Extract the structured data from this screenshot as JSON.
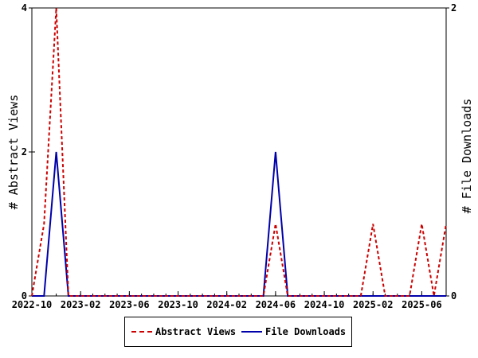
{
  "chart_data": {
    "type": "line",
    "x_type": "date",
    "x": [
      "2022-10-01",
      "2022-11-01",
      "2022-12-01",
      "2023-01-01",
      "2023-02-01",
      "2023-03-01",
      "2023-04-01",
      "2023-05-01",
      "2023-06-01",
      "2023-07-01",
      "2023-08-01",
      "2023-09-01",
      "2023-10-01",
      "2023-11-01",
      "2023-12-01",
      "2024-01-01",
      "2024-02-01",
      "2024-03-01",
      "2024-04-01",
      "2024-05-01",
      "2024-06-01",
      "2024-07-01",
      "2024-08-01",
      "2024-09-01",
      "2024-10-01",
      "2024-11-01",
      "2024-12-01",
      "2025-01-01",
      "2025-02-01",
      "2025-03-01",
      "2025-04-01",
      "2025-05-01",
      "2025-06-01",
      "2025-07-01",
      "2025-08-01"
    ],
    "series": [
      {
        "name": "Abstract Views",
        "axis": "left",
        "color": "#cc0000",
        "style": "dashed",
        "values": [
          0,
          1,
          4,
          0,
          0,
          0,
          0,
          0,
          0,
          0,
          0,
          0,
          0,
          0,
          0,
          0,
          0,
          0,
          0,
          0,
          1,
          0,
          0,
          0,
          0,
          0,
          0,
          0,
          1,
          0,
          0,
          0,
          1,
          0,
          1
        ]
      },
      {
        "name": "File Downloads",
        "axis": "right",
        "color": "#0000aa",
        "style": "solid",
        "values": [
          0,
          0,
          1,
          0,
          0,
          0,
          0,
          0,
          0,
          0,
          0,
          0,
          0,
          0,
          0,
          0,
          0,
          0,
          0,
          0,
          1,
          0,
          0,
          0,
          0,
          0,
          0,
          0,
          0,
          0,
          0,
          0,
          0,
          0,
          0
        ]
      }
    ],
    "x_ticks": [
      "2022-10",
      "2023-02",
      "2023-06",
      "2023-10",
      "2024-02",
      "2024-06",
      "2024-10",
      "2025-02",
      "2025-06"
    ],
    "y_left": {
      "label": "# Abstract Views",
      "ticks": [
        "0",
        "2",
        "4"
      ],
      "lim": [
        0,
        4
      ]
    },
    "y_right": {
      "label": "# File Downloads",
      "ticks": [
        "0",
        "2"
      ],
      "lim": [
        0,
        2
      ]
    },
    "legend": {
      "position": "bottom",
      "entries": [
        "Abstract Views",
        "File Downloads"
      ]
    },
    "grid": false
  }
}
